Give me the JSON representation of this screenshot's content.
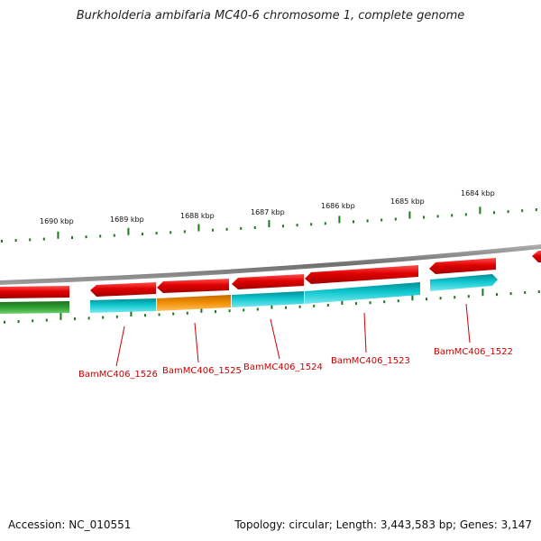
{
  "title": "Burkholderia ambifaria MC40-6 chromosome 1, complete genome",
  "footer": {
    "accession": "Accession: NC_010551",
    "summary": "Topology: circular; Length: 3,443,583 bp; Genes: 3,147"
  },
  "colors": {
    "forward_gene": "#e01010",
    "reverse_gene": "#10c8d0",
    "highlight_gene": "#f08c00",
    "green_gene": "#30a030",
    "tick": "#1a7a1a",
    "backbone": "#808080",
    "label": "#cc0000"
  },
  "scale_labels": [
    "1690 kbp",
    "1689 kbp",
    "1688 kbp",
    "1687 kbp",
    "1686 kbp",
    "1685 kbp",
    "1684 kbp"
  ],
  "gene_labels": [
    "BamMC406_1526",
    "BamMC406_1525",
    "BamMC406_1524",
    "BamMC406_1523",
    "BamMC406_1522"
  ]
}
